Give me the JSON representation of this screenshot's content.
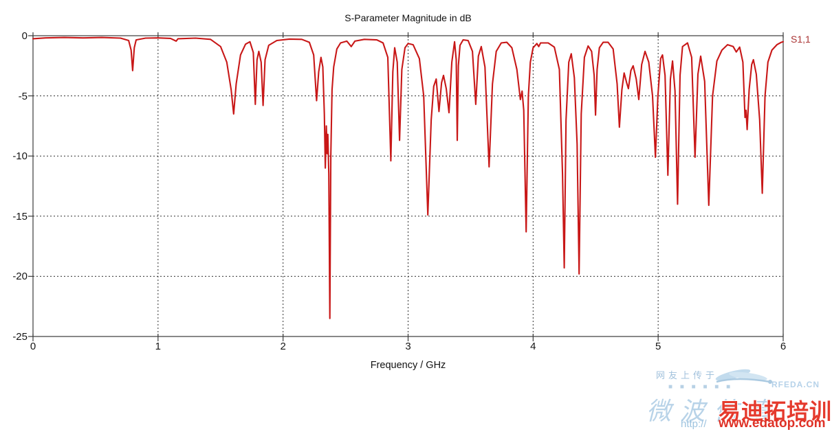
{
  "chart_data": {
    "type": "line",
    "title": "S-Parameter Magnitude in dB",
    "xlabel": "Frequency / GHz",
    "ylabel": "",
    "xlim": [
      0,
      6
    ],
    "ylim": [
      -25,
      0
    ],
    "x_ticks": [
      "0",
      "1",
      "2",
      "3",
      "4",
      "5",
      "6"
    ],
    "y_ticks": [
      "0",
      "-5",
      "-10",
      "-15",
      "-20",
      "-25"
    ],
    "grid": "dashed",
    "legend_position": "top-right-outside",
    "axis_color": "#3a3a3a",
    "grid_color": "#2e2e2e",
    "series": [
      {
        "name": "S1,1",
        "color": "#c81717",
        "points": [
          [
            0.0,
            -0.25
          ],
          [
            0.1,
            -0.18
          ],
          [
            0.25,
            -0.15
          ],
          [
            0.4,
            -0.18
          ],
          [
            0.55,
            -0.15
          ],
          [
            0.7,
            -0.2
          ],
          [
            0.765,
            -0.4
          ],
          [
            0.785,
            -1.2
          ],
          [
            0.797,
            -2.9
          ],
          [
            0.81,
            -1.0
          ],
          [
            0.825,
            -0.35
          ],
          [
            0.9,
            -0.2
          ],
          [
            1.0,
            -0.18
          ],
          [
            1.1,
            -0.22
          ],
          [
            1.145,
            -0.45
          ],
          [
            1.16,
            -0.25
          ],
          [
            1.3,
            -0.2
          ],
          [
            1.42,
            -0.3
          ],
          [
            1.5,
            -0.9
          ],
          [
            1.55,
            -2.2
          ],
          [
            1.585,
            -4.5
          ],
          [
            1.605,
            -6.5
          ],
          [
            1.625,
            -4.0
          ],
          [
            1.66,
            -1.6
          ],
          [
            1.7,
            -0.7
          ],
          [
            1.735,
            -0.5
          ],
          [
            1.762,
            -1.4
          ],
          [
            1.778,
            -5.7
          ],
          [
            1.792,
            -2.0
          ],
          [
            1.806,
            -1.3
          ],
          [
            1.825,
            -2.2
          ],
          [
            1.84,
            -5.8
          ],
          [
            1.856,
            -2.0
          ],
          [
            1.885,
            -0.8
          ],
          [
            1.95,
            -0.4
          ],
          [
            2.05,
            -0.28
          ],
          [
            2.15,
            -0.3
          ],
          [
            2.21,
            -0.55
          ],
          [
            2.245,
            -1.6
          ],
          [
            2.268,
            -5.4
          ],
          [
            2.285,
            -3.0
          ],
          [
            2.303,
            -1.8
          ],
          [
            2.318,
            -2.6
          ],
          [
            2.33,
            -6.5
          ],
          [
            2.338,
            -11.0
          ],
          [
            2.346,
            -7.5
          ],
          [
            2.352,
            -9.8
          ],
          [
            2.358,
            -8.2
          ],
          [
            2.366,
            -11.5
          ],
          [
            2.374,
            -23.5
          ],
          [
            2.382,
            -10.0
          ],
          [
            2.392,
            -4.5
          ],
          [
            2.405,
            -2.6
          ],
          [
            2.43,
            -1.1
          ],
          [
            2.46,
            -0.6
          ],
          [
            2.51,
            -0.45
          ],
          [
            2.545,
            -0.9
          ],
          [
            2.575,
            -0.45
          ],
          [
            2.65,
            -0.3
          ],
          [
            2.75,
            -0.35
          ],
          [
            2.8,
            -0.6
          ],
          [
            2.838,
            -1.8
          ],
          [
            2.862,
            -10.4
          ],
          [
            2.878,
            -3.0
          ],
          [
            2.893,
            -1.0
          ],
          [
            2.913,
            -2.2
          ],
          [
            2.932,
            -8.7
          ],
          [
            2.95,
            -2.8
          ],
          [
            2.975,
            -1.0
          ],
          [
            3.0,
            -0.65
          ],
          [
            3.04,
            -0.75
          ],
          [
            3.09,
            -1.9
          ],
          [
            3.125,
            -5.0
          ],
          [
            3.158,
            -14.9
          ],
          [
            3.185,
            -7.0
          ],
          [
            3.205,
            -4.2
          ],
          [
            3.225,
            -3.6
          ],
          [
            3.247,
            -6.3
          ],
          [
            3.268,
            -3.9
          ],
          [
            3.283,
            -3.3
          ],
          [
            3.305,
            -4.4
          ],
          [
            3.327,
            -6.4
          ],
          [
            3.35,
            -2.2
          ],
          [
            3.372,
            -0.5
          ],
          [
            3.385,
            -2.0
          ],
          [
            3.393,
            -8.7
          ],
          [
            3.402,
            -2.5
          ],
          [
            3.415,
            -0.8
          ],
          [
            3.44,
            -0.35
          ],
          [
            3.48,
            -0.4
          ],
          [
            3.515,
            -1.3
          ],
          [
            3.541,
            -5.7
          ],
          [
            3.562,
            -1.7
          ],
          [
            3.585,
            -0.9
          ],
          [
            3.615,
            -2.6
          ],
          [
            3.648,
            -10.9
          ],
          [
            3.675,
            -4.0
          ],
          [
            3.705,
            -1.3
          ],
          [
            3.745,
            -0.6
          ],
          [
            3.79,
            -0.55
          ],
          [
            3.83,
            -1.0
          ],
          [
            3.87,
            -2.8
          ],
          [
            3.898,
            -5.3
          ],
          [
            3.912,
            -4.6
          ],
          [
            3.925,
            -6.2
          ],
          [
            3.944,
            -16.3
          ],
          [
            3.962,
            -5.0
          ],
          [
            3.978,
            -2.2
          ],
          [
            4.0,
            -1.0
          ],
          [
            4.03,
            -0.65
          ],
          [
            4.045,
            -0.9
          ],
          [
            4.06,
            -0.6
          ],
          [
            4.12,
            -0.6
          ],
          [
            4.17,
            -0.95
          ],
          [
            4.21,
            -2.8
          ],
          [
            4.235,
            -11.5
          ],
          [
            4.249,
            -19.3
          ],
          [
            4.263,
            -7.0
          ],
          [
            4.285,
            -2.2
          ],
          [
            4.305,
            -1.5
          ],
          [
            4.33,
            -3.5
          ],
          [
            4.352,
            -9.0
          ],
          [
            4.368,
            -19.8
          ],
          [
            4.385,
            -6.5
          ],
          [
            4.41,
            -1.8
          ],
          [
            4.44,
            -0.85
          ],
          [
            4.468,
            -1.3
          ],
          [
            4.488,
            -3.3
          ],
          [
            4.499,
            -6.6
          ],
          [
            4.512,
            -2.8
          ],
          [
            4.53,
            -1.0
          ],
          [
            4.56,
            -0.55
          ],
          [
            4.6,
            -0.55
          ],
          [
            4.64,
            -1.1
          ],
          [
            4.672,
            -4.0
          ],
          [
            4.69,
            -7.6
          ],
          [
            4.71,
            -4.5
          ],
          [
            4.728,
            -3.1
          ],
          [
            4.748,
            -3.9
          ],
          [
            4.762,
            -4.4
          ],
          [
            4.782,
            -2.9
          ],
          [
            4.8,
            -2.5
          ],
          [
            4.825,
            -3.6
          ],
          [
            4.845,
            -5.3
          ],
          [
            4.868,
            -2.4
          ],
          [
            4.895,
            -1.3
          ],
          [
            4.925,
            -2.2
          ],
          [
            4.955,
            -5.0
          ],
          [
            4.978,
            -10.1
          ],
          [
            4.998,
            -5.0
          ],
          [
            5.02,
            -1.9
          ],
          [
            5.035,
            -1.6
          ],
          [
            5.055,
            -3.3
          ],
          [
            5.078,
            -11.6
          ],
          [
            5.098,
            -3.6
          ],
          [
            5.115,
            -2.1
          ],
          [
            5.135,
            -4.6
          ],
          [
            5.155,
            -14.0
          ],
          [
            5.175,
            -3.3
          ],
          [
            5.195,
            -0.9
          ],
          [
            5.235,
            -0.6
          ],
          [
            5.268,
            -1.8
          ],
          [
            5.295,
            -10.1
          ],
          [
            5.318,
            -3.2
          ],
          [
            5.34,
            -1.7
          ],
          [
            5.372,
            -3.8
          ],
          [
            5.405,
            -14.1
          ],
          [
            5.435,
            -5.0
          ],
          [
            5.47,
            -2.1
          ],
          [
            5.51,
            -1.2
          ],
          [
            5.555,
            -0.75
          ],
          [
            5.6,
            -0.9
          ],
          [
            5.625,
            -1.35
          ],
          [
            5.652,
            -0.95
          ],
          [
            5.678,
            -2.2
          ],
          [
            5.695,
            -6.8
          ],
          [
            5.703,
            -6.2
          ],
          [
            5.712,
            -7.8
          ],
          [
            5.728,
            -4.5
          ],
          [
            5.748,
            -2.4
          ],
          [
            5.762,
            -2.0
          ],
          [
            5.785,
            -3.2
          ],
          [
            5.812,
            -7.0
          ],
          [
            5.833,
            -13.1
          ],
          [
            5.855,
            -5.0
          ],
          [
            5.878,
            -2.2
          ],
          [
            5.91,
            -1.2
          ],
          [
            5.95,
            -0.75
          ],
          [
            5.985,
            -0.55
          ],
          [
            6.0,
            -0.5
          ]
        ]
      }
    ]
  },
  "chart": {
    "title": "S-Parameter Magnitude in dB",
    "xlabel": "Frequency / GHz",
    "legend_label": "S1,1",
    "legend_color": "#a93333"
  },
  "watermark": {
    "uploader_text": "网友上传于",
    "squares": "■ ■ ■ ■ ■ ■",
    "script_text": "微波仿真",
    "site_name_cn": "易迪拓培训",
    "site_prefix": "http://",
    "site_url": "www.edatop.com",
    "logo_label": "RFEDA.CN",
    "accent_red": "#e53a2d",
    "url_red": "#df3227",
    "light_blue": "#92bcdb"
  }
}
